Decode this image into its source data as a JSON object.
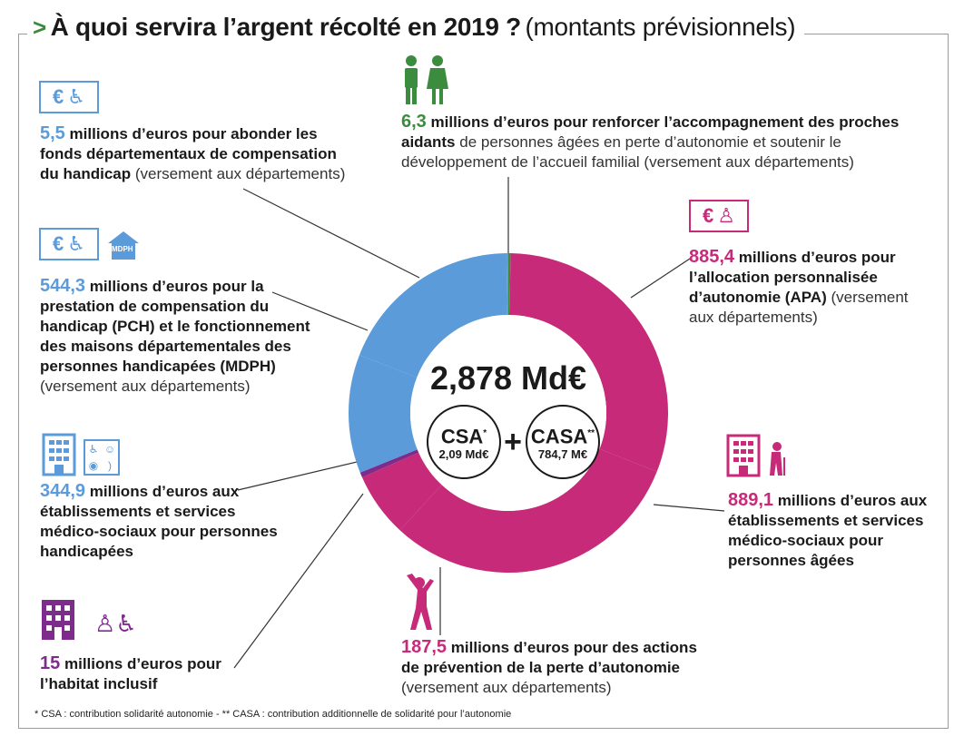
{
  "title": {
    "main": "À quoi servira l’argent récolté en 2019 ?",
    "sub": "(montants prévisionnels)"
  },
  "colors": {
    "blue": "#5b9bd9",
    "green": "#3c8c40",
    "magenta": "#c72a79",
    "purple": "#7e2c8c"
  },
  "center": {
    "total": "2,878 Md€",
    "csa_label": "CSA",
    "csa_star": "*",
    "csa_value": "2,09 Md€",
    "plus": "+",
    "casa_label": "CASA",
    "casa_star": "**",
    "casa_value": "784,7 M€"
  },
  "blocks": {
    "fonds": {
      "value": "5,5",
      "bold": "millions d’euros pour abonder les fonds départementaux de compensation du handicap",
      "light": "(versement aux départements)"
    },
    "pch": {
      "value": "544,3",
      "bold": "millions d’euros pour la prestation de compensation du handicap (PCH) et le fonctionnement des maisons départementales des personnes handicapées (MDPH)",
      "light": "(versement aux départements)"
    },
    "etab_ph": {
      "value": "344,9",
      "bold": "millions d’euros aux établissements et services médico-sociaux pour personnes handicapées",
      "light": ""
    },
    "habitat": {
      "value": "15",
      "bold": "millions d’euros pour l’habitat inclusif",
      "light": ""
    },
    "aidants": {
      "value": "6,3",
      "bold": "millions d’euros pour renforcer l’accompagnement des proches aidants",
      "light": "de personnes âgées en perte d’autonomie et soutenir le développement de l’accueil familial (versement aux départements)"
    },
    "apa": {
      "value": "885,4",
      "bold": "millions d’euros pour l’allocation personnalisée d’autonomie (APA)",
      "light": "(versement aux départements)"
    },
    "etab_pa": {
      "value": "889,1",
      "bold": "millions d’euros aux établissements et services médico-sociaux pour personnes âgées",
      "light": ""
    },
    "prevention": {
      "value": "187,5",
      "bold": "millions d’euros pour des actions de prévention de la perte d’autonomie",
      "light": "(versement aux départements)"
    }
  },
  "icons": {
    "euro": "€",
    "mdph": "MDPH"
  },
  "footnote": "* CSA : contribution solidarité autonomie - ** CASA : contribution additionnelle de solidarité pour l’autonomie",
  "chart_data": {
    "type": "pie",
    "unit": "millions d’euros",
    "total_label": "2,878 Md€",
    "slices": [
      {
        "name": "Proches aidants",
        "value": 6.3,
        "color": "#3c8c40"
      },
      {
        "name": "APA",
        "value": 885.4,
        "color": "#c72a79"
      },
      {
        "name": "Établissements et services personnes âgées",
        "value": 889.1,
        "color": "#c72a79"
      },
      {
        "name": "Prévention de la perte d’autonomie",
        "value": 187.5,
        "color": "#c72a79"
      },
      {
        "name": "Habitat inclusif",
        "value": 15,
        "color": "#7e2c8c"
      },
      {
        "name": "Établissements et services personnes handicapées",
        "value": 344.9,
        "color": "#5b9bd9"
      },
      {
        "name": "PCH et MDPH",
        "value": 544.3,
        "color": "#5b9bd9"
      },
      {
        "name": "Fonds départementaux de compensation",
        "value": 5.5,
        "color": "#5b9bd9"
      }
    ]
  }
}
